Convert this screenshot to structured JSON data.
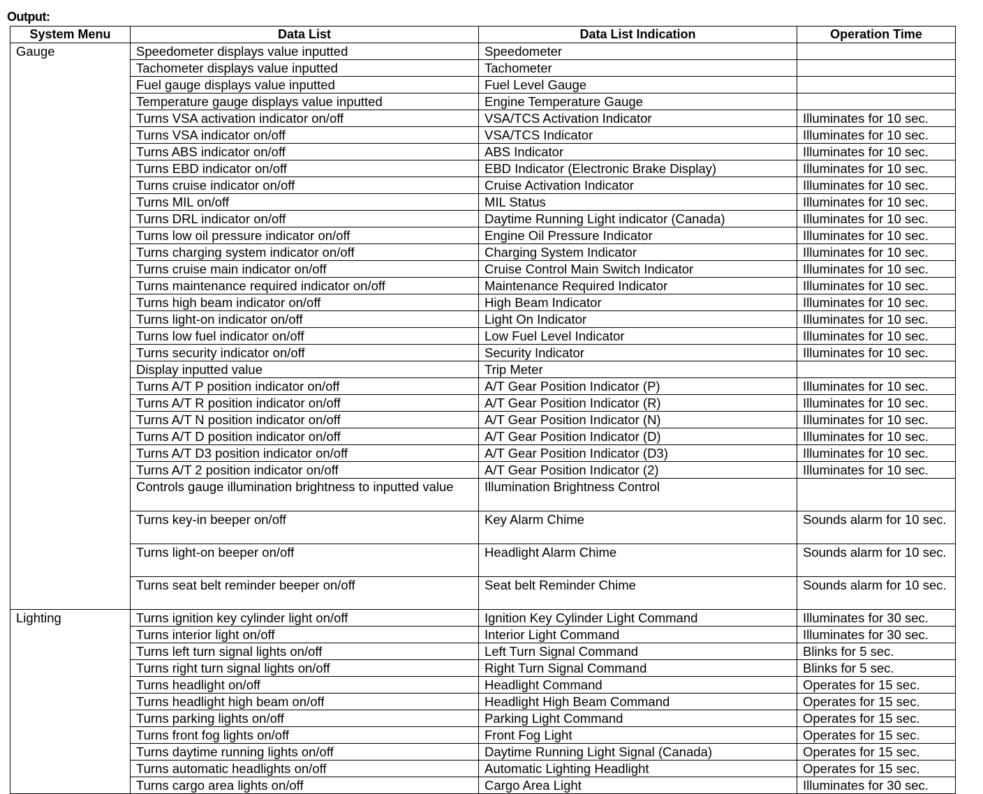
{
  "title": "Output:",
  "headers": [
    "System Menu",
    "Data List",
    "Data List Indication",
    "Operation Time"
  ],
  "groups": [
    {
      "menu": "Gauge",
      "rows": [
        [
          "Speedometer displays value inputted",
          "Speedometer",
          ""
        ],
        [
          "Tachometer displays value inputted",
          "Tachometer",
          ""
        ],
        [
          "Fuel gauge displays value inputted",
          "Fuel Level Gauge",
          ""
        ],
        [
          "Temperature gauge displays value inputted",
          "Engine Temperature Gauge",
          ""
        ],
        [
          "Turns VSA activation indicator on/off",
          "VSA/TCS Activation Indicator",
          "Illuminates for 10 sec."
        ],
        [
          "Turns VSA indicator on/off",
          "VSA/TCS Indicator",
          "Illuminates for 10 sec."
        ],
        [
          "Turns ABS indicator on/off",
          "ABS Indicator",
          "Illuminates for 10 sec."
        ],
        [
          "Turns EBD indicator on/off",
          "EBD Indicator (Electronic Brake Display)",
          "Illuminates for 10 sec."
        ],
        [
          "Turns cruise indicator on/off",
          "Cruise Activation Indicator",
          "Illuminates for 10 sec."
        ],
        [
          "Turns MIL on/off",
          "MIL Status",
          "Illuminates for 10 sec."
        ],
        [
          "Turns DRL indicator on/off",
          "Daytime Running Light indicator (Canada)",
          "Illuminates for 10 sec."
        ],
        [
          "Turns low oil pressure indicator on/off",
          "Engine Oil Pressure Indicator",
          "Illuminates for 10 sec."
        ],
        [
          "Turns charging system indicator on/off",
          "Charging System Indicator",
          "Illuminates for 10 sec."
        ],
        [
          "Turns cruise main indicator on/off",
          "Cruise Control Main Switch Indicator",
          "Illuminates for 10 sec."
        ],
        [
          "Turns maintenance required indicator on/off",
          "Maintenance Required Indicator",
          "Illuminates for 10 sec."
        ],
        [
          "Turns high beam indicator on/off",
          "High Beam Indicator",
          "Illuminates for 10 sec."
        ],
        [
          "Turns light-on indicator on/off",
          "Light On Indicator",
          "Illuminates for 10 sec."
        ],
        [
          "Turns low fuel indicator on/off",
          "Low Fuel Level Indicator",
          "Illuminates for 10 sec."
        ],
        [
          "Turns security indicator on/off",
          "Security Indicator",
          "Illuminates for 10 sec."
        ],
        [
          "Display inputted value",
          "Trip Meter",
          ""
        ],
        [
          "Turns A/T P position indicator on/off",
          "A/T Gear Position Indicator (P)",
          "Illuminates for 10 sec."
        ],
        [
          "Turns A/T R position indicator on/off",
          "A/T Gear Position Indicator (R)",
          "Illuminates for 10 sec."
        ],
        [
          "Turns A/T N position indicator on/off",
          "A/T Gear Position Indicator (N)",
          "Illuminates for 10 sec."
        ],
        [
          "Turns A/T D position indicator on/off",
          "A/T Gear Position Indicator (D)",
          "Illuminates for 10 sec."
        ],
        [
          "Turns A/T D3 position indicator on/off",
          "A/T Gear Position Indicator (D3)",
          "Illuminates for 10 sec."
        ],
        [
          "Turns A/T 2 position indicator on/off",
          "A/T Gear Position Indicator (2)",
          "Illuminates for 10 sec."
        ],
        [
          "Controls gauge illumination brightness to inputted value",
          "Illumination Brightness Control",
          ""
        ],
        [
          "Turns key-in beeper on/off",
          "Key Alarm Chime",
          "Sounds alarm for 10 sec."
        ],
        [
          "Turns light-on beeper on/off",
          "Headlight Alarm Chime",
          "Sounds alarm for 10 sec."
        ],
        [
          "Turns seat belt reminder beeper on/off",
          "Seat belt Reminder Chime",
          "Sounds alarm for 10 sec."
        ]
      ]
    },
    {
      "menu": "Lighting",
      "rows": [
        [
          "Turns ignition key cylinder light on/off",
          "Ignition Key Cylinder Light Command",
          "Illuminates for 30 sec."
        ],
        [
          "Turns interior light on/off",
          "Interior Light Command",
          "Illuminates for 30 sec."
        ],
        [
          "Turns left turn signal lights on/off",
          "Left Turn Signal Command",
          "Blinks for 5 sec."
        ],
        [
          "Turns right turn signal lights on/off",
          "Right Turn Signal Command",
          "Blinks for 5 sec."
        ],
        [
          "Turns headlight on/off",
          "Headlight Command",
          "Operates for 15 sec."
        ],
        [
          "Turns headlight high beam on/off",
          "Headlight High Beam Command",
          "Operates for 15 sec."
        ],
        [
          "Turns parking lights on/off",
          "Parking Light Command",
          "Operates for 15 sec."
        ],
        [
          "Turns front fog lights on/off",
          "Front Fog Light",
          "Operates for 15 sec."
        ],
        [
          "Turns daytime running lights on/off",
          "Daytime Running Light Signal (Canada)",
          "Operates for 15 sec."
        ],
        [
          "Turns automatic headlights on/off",
          "Automatic Lighting Headlight",
          "Operates for 15 sec."
        ],
        [
          "Turns cargo area lights on/off",
          "Cargo Area Light",
          "Illuminates for 30 sec."
        ]
      ]
    }
  ]
}
